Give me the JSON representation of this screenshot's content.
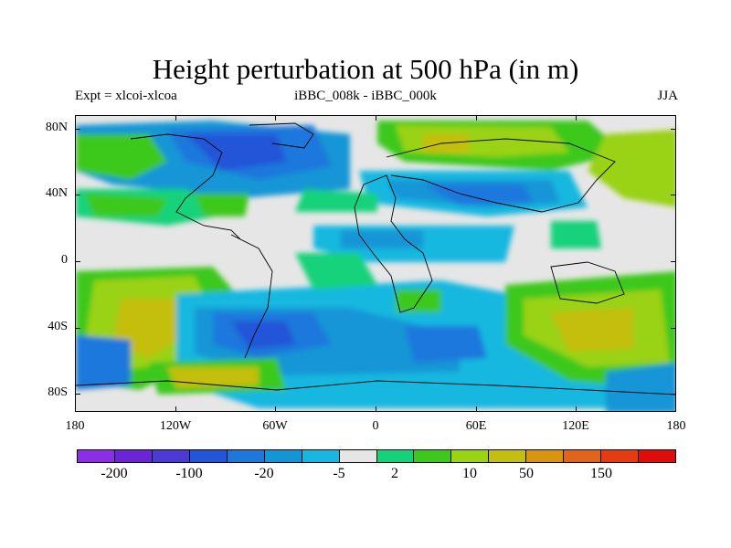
{
  "title": "Height perturbation at 500 hPa (in m)",
  "subtitle_left": "Expt = xlcoi-xlcoa",
  "subtitle_center": "iBBC_008k - iBBC_000k",
  "subtitle_right": "JJA",
  "lat_labels": [
    "80N",
    "40N",
    "0",
    "40S",
    "80S"
  ],
  "lon_labels": [
    "180",
    "120W",
    "60W",
    "0",
    "60E",
    "120E",
    "180"
  ],
  "colorbar": {
    "colors": [
      "#8c2ee6",
      "#6a25d6",
      "#4b3ad6",
      "#2255d8",
      "#1e78dc",
      "#1496d6",
      "#16b8e0",
      "#e6e6e6",
      "#14d27a",
      "#3ec81e",
      "#9ad214",
      "#c4be10",
      "#d8960e",
      "#e0641a",
      "#e43c10",
      "#e00c0c"
    ],
    "tick_labels": [
      "-200",
      "-100",
      "-20",
      "-5",
      "2",
      "10",
      "50",
      "150"
    ]
  },
  "chart_data": {
    "type": "heatmap",
    "title": "Height perturbation at 500 hPa (in m)",
    "projection": "cylindrical-equidistant",
    "lon_range": [
      -180,
      180
    ],
    "lat_range": [
      -90,
      90
    ],
    "contour_levels_labeled": [
      -200,
      -100,
      -20,
      -5,
      2,
      10,
      50,
      150
    ],
    "features": [
      {
        "region": "Canada / Arctic",
        "sign": "negative",
        "approx_value": "-20 to -100"
      },
      {
        "region": "Northern Eurasia",
        "sign": "positive",
        "approx_value": "10 to 50"
      },
      {
        "region": "Mid-latitude Eurasia",
        "sign": "negative",
        "approx_value": "-5 to -20"
      },
      {
        "region": "South Pacific (west)",
        "sign": "positive",
        "approx_value": "10 to 50"
      },
      {
        "region": "Southern Ocean / South America",
        "sign": "negative",
        "approx_value": "-20 to -100"
      },
      {
        "region": "South Indian Ocean",
        "sign": "negative",
        "approx_value": "-20 to -100"
      },
      {
        "region": "Australia / SW Pacific",
        "sign": "positive",
        "approx_value": "10 to 50"
      }
    ]
  }
}
